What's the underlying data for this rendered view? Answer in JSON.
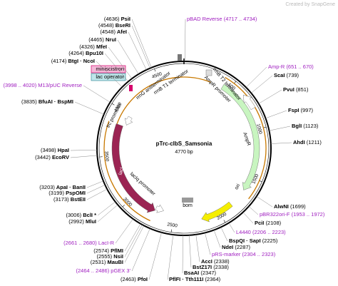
{
  "watermark": "Created by SnapGene",
  "title": "pTrc-clbS_Samsonia",
  "length": "4770 bp",
  "ticks": [
    500,
    1000,
    1500,
    2000,
    2500,
    3000,
    3500,
    4000,
    4500
  ],
  "features": [
    "rrnG antiterminator",
    "rrnB T1 terminator",
    "AmpR promoter",
    "rrnB T2 terminator",
    "AmpR",
    "ori",
    "bom",
    "lacIq promoter",
    "lacI",
    "trc promoter"
  ],
  "boxed_features": [
    "miniscistron",
    "lac operator"
  ],
  "enzymes": [
    {
      "name": "PsiI",
      "pos": "(4636)"
    },
    {
      "name": "BseRI",
      "pos": "(4548)"
    },
    {
      "name": "AfeI",
      "pos": "(4548)"
    },
    {
      "name": "NruI",
      "pos": "(4465)"
    },
    {
      "name": "MfeI",
      "pos": "(4326)"
    },
    {
      "name": "Bpu10I",
      "pos": "(4264)"
    },
    {
      "name": "BtgI · NcoI",
      "pos": "(4174)"
    },
    {
      "name": "BfuAI · BspMI",
      "pos": "(3835)"
    },
    {
      "name": "HpaI",
      "pos": "(3498)"
    },
    {
      "name": "EcoRV",
      "pos": "(3442)"
    },
    {
      "name": "ApaI · BanII",
      "pos": "(3203)"
    },
    {
      "name": "PspOMI",
      "pos": "(3199)"
    },
    {
      "name": "BstEII",
      "pos": "(3173)"
    },
    {
      "name": "BclI *",
      "pos": "(3006)"
    },
    {
      "name": "MluI",
      "pos": "(2992)"
    },
    {
      "name": "PflMI",
      "pos": "(2574)"
    },
    {
      "name": "NsiI",
      "pos": "(2555)"
    },
    {
      "name": "MauBI",
      "pos": "(2531)"
    },
    {
      "name": "PfoI",
      "pos": "(2463)"
    },
    {
      "name": "ScaI",
      "pos": "(739)"
    },
    {
      "name": "PvuI",
      "pos": "(851)"
    },
    {
      "name": "FspI",
      "pos": "(997)"
    },
    {
      "name": "BglI",
      "pos": "(1123)"
    },
    {
      "name": "AhdI",
      "pos": "(1211)"
    },
    {
      "name": "AlwNI",
      "pos": "(1699)"
    },
    {
      "name": "PciI",
      "pos": "(2108)"
    },
    {
      "name": "BspQI · SapI",
      "pos": "(2225)"
    },
    {
      "name": "NdeI",
      "pos": "(2287)"
    },
    {
      "name": "AccI",
      "pos": "(2338)"
    },
    {
      "name": "BstZ17I",
      "pos": "(2338)"
    },
    {
      "name": "BsaAI",
      "pos": "(2347)"
    },
    {
      "name": "PflFI · Tth111I",
      "pos": "(2364)"
    }
  ],
  "primers": [
    {
      "name": "M13/pUC Reverse",
      "range": "(3998 .. 4020)"
    },
    {
      "name": "LacI-R",
      "range": "(2661 .. 2680)"
    },
    {
      "name": "pGEX 3'",
      "range": "(2464 .. 2486)"
    },
    {
      "name": "pBAD Reverse",
      "range": "(4717 .. 4734)"
    },
    {
      "name": "Amp-R",
      "range": "(651 .. 670)"
    },
    {
      "name": "pBR322ori-F",
      "range": "(1953 .. 1972)"
    },
    {
      "name": "L4440",
      "range": "(2206 .. 2223)"
    },
    {
      "name": "pRS-marker",
      "range": "(2304 .. 2323)"
    }
  ]
}
